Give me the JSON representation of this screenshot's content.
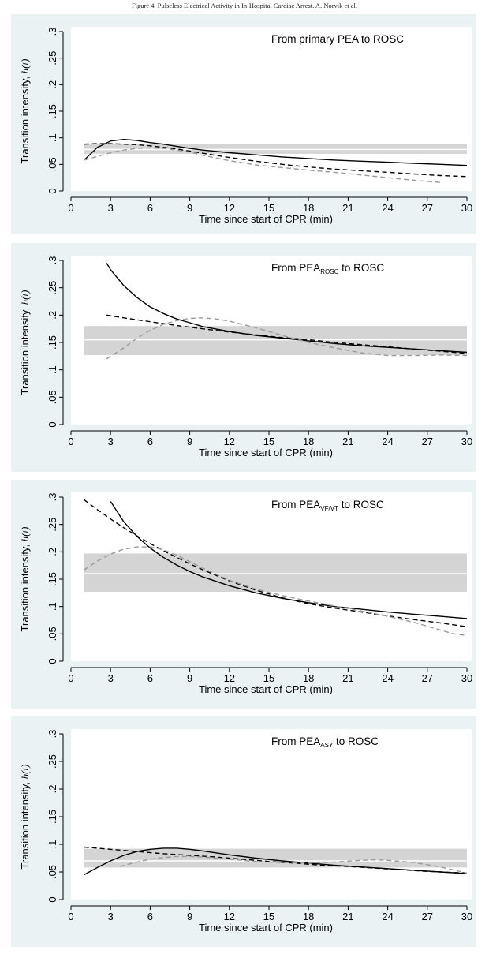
{
  "header": {
    "caption": "Figure 4. Pulseless Electrical Activity in In-Hospital Cardiac Arrest. A. Norvik et al."
  },
  "chart_data": [
    {
      "type": "line",
      "title": {
        "main": "From primary PEA to ROSC",
        "sub": "",
        "suffix": ""
      },
      "xlabel": "Time since start of CPR (min)",
      "ylabel": {
        "main": "Transition intensity, ",
        "italic": "h(t)"
      },
      "xlim": [
        0,
        30
      ],
      "ylim": [
        0,
        0.3
      ],
      "xticks": [
        0,
        3,
        6,
        9,
        12,
        15,
        18,
        21,
        24,
        27,
        30
      ],
      "yticks": [
        0,
        0.05,
        0.1,
        0.15,
        0.2,
        0.25,
        0.3
      ],
      "ytick_labels": [
        "0",
        ".05",
        ".1",
        ".15",
        ".2",
        ".25",
        ".3"
      ],
      "band": {
        "x": [
          1,
          30
        ],
        "lower": 0.07,
        "upper": 0.089,
        "center": 0.078
      },
      "series": [
        {
          "style": "solid",
          "color": "#000000",
          "x": [
            1,
            2,
            3,
            4,
            5,
            6,
            7,
            8,
            9,
            10,
            12,
            14,
            16,
            18,
            20,
            22,
            24,
            26,
            28,
            30
          ],
          "y": [
            0.058,
            0.082,
            0.094,
            0.097,
            0.095,
            0.091,
            0.088,
            0.084,
            0.08,
            0.077,
            0.072,
            0.068,
            0.064,
            0.061,
            0.058,
            0.056,
            0.054,
            0.052,
            0.05,
            0.048
          ]
        },
        {
          "style": "dashed",
          "color": "#000000",
          "x": [
            1,
            2,
            3,
            4,
            5,
            6,
            7,
            8,
            9,
            10,
            12,
            14,
            16,
            18,
            20,
            22,
            24,
            26,
            28,
            30
          ],
          "y": [
            0.088,
            0.089,
            0.089,
            0.088,
            0.087,
            0.085,
            0.082,
            0.079,
            0.075,
            0.071,
            0.063,
            0.056,
            0.05,
            0.045,
            0.041,
            0.038,
            0.035,
            0.032,
            0.029,
            0.027
          ]
        },
        {
          "style": "dashed",
          "color": "#9a9a9a",
          "x": [
            1,
            2,
            3,
            4,
            5,
            6,
            7,
            8,
            9,
            10,
            12,
            14,
            16,
            18,
            20,
            22,
            24,
            26,
            28
          ],
          "y": [
            0.058,
            0.065,
            0.072,
            0.077,
            0.08,
            0.081,
            0.08,
            0.077,
            0.073,
            0.067,
            0.057,
            0.049,
            0.044,
            0.039,
            0.035,
            0.03,
            0.025,
            0.02,
            0.016
          ]
        }
      ]
    },
    {
      "type": "line",
      "title": {
        "main": "From PEA",
        "sub": "ROSC",
        "suffix": " to ROSC"
      },
      "xlabel": "Time since start of CPR (min)",
      "ylabel": {
        "main": "Transition intensity, ",
        "italic": "h(t)"
      },
      "xlim": [
        0,
        30
      ],
      "ylim": [
        0,
        0.3
      ],
      "xticks": [
        0,
        3,
        6,
        9,
        12,
        15,
        18,
        21,
        24,
        27,
        30
      ],
      "yticks": [
        0,
        0.05,
        0.1,
        0.15,
        0.2,
        0.25,
        0.3
      ],
      "ytick_labels": [
        "0",
        ".05",
        ".1",
        ".15",
        ".2",
        ".25",
        ".3"
      ],
      "band": {
        "x": [
          1,
          30
        ],
        "lower": 0.127,
        "upper": 0.18,
        "center": 0.155
      },
      "series": [
        {
          "style": "solid",
          "color": "#000000",
          "x": [
            2.7,
            3,
            4,
            5,
            6,
            7,
            8,
            9,
            10,
            12,
            14,
            16,
            18,
            20,
            22,
            24,
            26,
            28,
            30
          ],
          "y": [
            0.295,
            0.283,
            0.254,
            0.232,
            0.215,
            0.203,
            0.193,
            0.186,
            0.179,
            0.17,
            0.163,
            0.158,
            0.153,
            0.148,
            0.144,
            0.141,
            0.138,
            0.135,
            0.132
          ]
        },
        {
          "style": "dashed",
          "color": "#000000",
          "x": [
            2.7,
            4,
            6,
            8,
            10,
            12,
            14,
            16,
            18,
            20,
            22,
            24,
            26,
            28,
            30
          ],
          "y": [
            0.2,
            0.195,
            0.188,
            0.181,
            0.175,
            0.169,
            0.164,
            0.159,
            0.155,
            0.15,
            0.146,
            0.142,
            0.138,
            0.134,
            0.13
          ]
        },
        {
          "style": "dashed",
          "color": "#9a9a9a",
          "x": [
            2.7,
            4,
            5,
            6,
            7,
            8,
            9,
            10,
            11,
            12,
            14,
            16,
            18,
            20,
            22,
            24,
            26,
            28,
            30
          ],
          "y": [
            0.12,
            0.14,
            0.158,
            0.172,
            0.183,
            0.19,
            0.194,
            0.195,
            0.193,
            0.189,
            0.177,
            0.163,
            0.15,
            0.14,
            0.131,
            0.126,
            0.126,
            0.127,
            0.126
          ]
        }
      ]
    },
    {
      "type": "line",
      "title": {
        "main": "From PEA",
        "sub": "VF/VT",
        "suffix": " to ROSC"
      },
      "xlabel": "Time since start of CPR (min)",
      "ylabel": {
        "main": "Transition intensity, ",
        "italic": "h(t)"
      },
      "xlim": [
        0,
        30
      ],
      "ylim": [
        0,
        0.3
      ],
      "xticks": [
        0,
        3,
        6,
        9,
        12,
        15,
        18,
        21,
        24,
        27,
        30
      ],
      "yticks": [
        0,
        0.05,
        0.1,
        0.15,
        0.2,
        0.25,
        0.3
      ],
      "ytick_labels": [
        "0",
        ".05",
        ".1",
        ".15",
        ".2",
        ".25",
        ".3"
      ],
      "band": {
        "x": [
          1,
          30
        ],
        "lower": 0.127,
        "upper": 0.197,
        "center": 0.16
      },
      "series": [
        {
          "style": "solid",
          "color": "#000000",
          "x": [
            3,
            4,
            5,
            6,
            7,
            8,
            9,
            10,
            12,
            14,
            16,
            18,
            20,
            22,
            24,
            26,
            28,
            30
          ],
          "y": [
            0.292,
            0.255,
            0.228,
            0.207,
            0.19,
            0.176,
            0.164,
            0.154,
            0.138,
            0.125,
            0.115,
            0.107,
            0.1,
            0.095,
            0.09,
            0.086,
            0.082,
            0.078
          ]
        },
        {
          "style": "dashed",
          "color": "#000000",
          "x": [
            1,
            2,
            3,
            4,
            5,
            6,
            7,
            8,
            9,
            10,
            12,
            14,
            16,
            18,
            20,
            22,
            24,
            26,
            28,
            30
          ],
          "y": [
            0.295,
            0.277,
            0.26,
            0.244,
            0.229,
            0.215,
            0.202,
            0.19,
            0.178,
            0.167,
            0.147,
            0.13,
            0.116,
            0.105,
            0.097,
            0.09,
            0.083,
            0.076,
            0.07,
            0.063
          ]
        },
        {
          "style": "dashed",
          "color": "#9a9a9a",
          "x": [
            1,
            2,
            3,
            4,
            5,
            6,
            7,
            8,
            9,
            10,
            12,
            14,
            16,
            18,
            20,
            22,
            24,
            26,
            28,
            29,
            30
          ],
          "y": [
            0.167,
            0.183,
            0.196,
            0.205,
            0.209,
            0.209,
            0.204,
            0.194,
            0.182,
            0.17,
            0.148,
            0.132,
            0.12,
            0.11,
            0.101,
            0.092,
            0.082,
            0.071,
            0.057,
            0.05,
            0.047
          ]
        }
      ]
    },
    {
      "type": "line",
      "title": {
        "main": "From PEA",
        "sub": "ASY",
        "suffix": " to ROSC"
      },
      "xlabel": "Time since start of CPR (min)",
      "ylabel": {
        "main": "Transition intensity, ",
        "italic": "h(t)"
      },
      "xlim": [
        0,
        30
      ],
      "ylim": [
        0,
        0.3
      ],
      "xticks": [
        0,
        3,
        6,
        9,
        12,
        15,
        18,
        21,
        24,
        27,
        30
      ],
      "yticks": [
        0,
        0.05,
        0.1,
        0.15,
        0.2,
        0.25,
        0.3
      ],
      "ytick_labels": [
        "0",
        ".05",
        ".1",
        ".15",
        ".2",
        ".25",
        ".3"
      ],
      "band": {
        "x": [
          1,
          30
        ],
        "lower": 0.058,
        "upper": 0.092,
        "center": 0.07
      },
      "series": [
        {
          "style": "solid",
          "color": "#000000",
          "x": [
            1,
            2,
            3,
            4,
            5,
            6,
            7,
            8,
            9,
            10,
            12,
            14,
            16,
            18,
            20,
            22,
            24,
            26,
            28,
            30
          ],
          "y": [
            0.045,
            0.058,
            0.07,
            0.08,
            0.087,
            0.091,
            0.093,
            0.093,
            0.091,
            0.088,
            0.081,
            0.075,
            0.07,
            0.066,
            0.062,
            0.059,
            0.056,
            0.053,
            0.05,
            0.047
          ]
        },
        {
          "style": "dashed",
          "color": "#000000",
          "x": [
            1,
            3,
            5,
            7,
            9,
            11,
            13,
            15,
            17,
            19,
            21,
            23,
            25,
            27,
            30
          ],
          "y": [
            0.095,
            0.091,
            0.087,
            0.083,
            0.08,
            0.077,
            0.073,
            0.069,
            0.066,
            0.062,
            0.06,
            0.057,
            0.054,
            0.051,
            0.048
          ]
        },
        {
          "style": "dashed",
          "color": "#9a9a9a",
          "x": [
            3.7,
            5,
            6,
            7,
            8,
            9,
            10,
            12,
            14,
            16,
            18,
            20,
            22,
            23,
            24,
            26,
            28,
            30
          ],
          "y": [
            0.06,
            0.068,
            0.073,
            0.076,
            0.078,
            0.078,
            0.077,
            0.073,
            0.069,
            0.067,
            0.066,
            0.068,
            0.071,
            0.072,
            0.071,
            0.067,
            0.059,
            0.048
          ]
        }
      ]
    }
  ]
}
